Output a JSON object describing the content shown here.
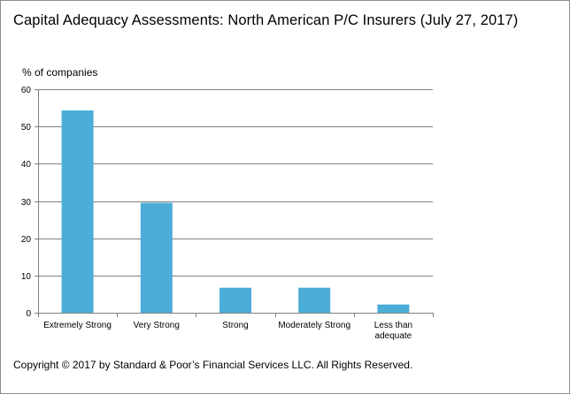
{
  "title": "Capital Adequacy Assessments: North American P/C Insurers (July 27, 2017)",
  "footer": "Copyright © 2017 by Standard & Poor’s Financial Services LLC. All Rights Reserved.",
  "colors": {
    "bar": "#4badd8",
    "grid": "#808080",
    "axis": "#808080"
  },
  "chart_data": {
    "type": "bar",
    "title": "Capital Adequacy Assessments: North American P/C Insurers (July 27, 2017)",
    "ylabel": "% of companies",
    "xlabel": "",
    "ylim": [
      0,
      60
    ],
    "yticks": [
      0,
      10,
      20,
      30,
      40,
      50,
      60
    ],
    "grid": true,
    "categories": [
      "Extremely Strong",
      "Very Strong",
      "Strong",
      "Moderately Strong",
      "Less than adequate"
    ],
    "category_lines": [
      [
        "Extremely Strong"
      ],
      [
        "Very Strong"
      ],
      [
        "Strong"
      ],
      [
        "Moderately Strong"
      ],
      [
        "Less than",
        "adequate"
      ]
    ],
    "values": [
      54.3,
      29.5,
      6.7,
      6.7,
      2.2
    ]
  }
}
